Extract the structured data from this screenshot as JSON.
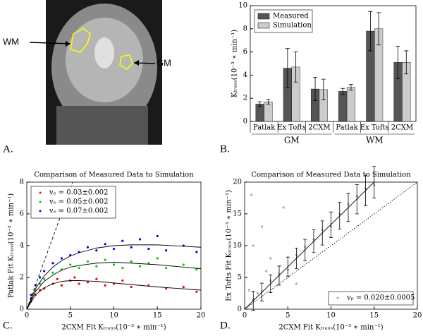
{
  "image": {
    "panel_label": "A.",
    "labels": [
      "WM",
      "GM"
    ]
  },
  "chart_data": [
    {
      "type": "bar",
      "panel_label": "B.",
      "ylabel": "Kₜᵣₐₙₛ(10⁻³ ∗ min⁻¹)",
      "categories": [
        "Patlak",
        "Ex Tofts",
        "2CXM",
        "Patlak",
        "Ex Tofts",
        "2CXM"
      ],
      "group_labels": [
        "GM",
        "WM"
      ],
      "series": [
        {
          "name": "Measured",
          "color": "#555555",
          "values": [
            1.5,
            4.6,
            2.8,
            2.6,
            7.8,
            5.1
          ],
          "errors": [
            0.2,
            1.7,
            1.0,
            0.25,
            1.7,
            1.4
          ]
        },
        {
          "name": "Simulation",
          "color": "#cccccc",
          "values": [
            1.7,
            4.7,
            2.75,
            2.95,
            8.0,
            5.1
          ],
          "errors": [
            0.2,
            1.3,
            0.9,
            0.25,
            1.4,
            1.0
          ]
        }
      ],
      "ylim": [
        0,
        10
      ],
      "yticks": [
        0,
        2,
        4,
        6,
        8,
        10
      ],
      "legend": "upper left"
    },
    {
      "type": "scatter",
      "panel_label": "C.",
      "title": "Comparison of Measured Data to Simulation",
      "xlabel": "2CXM Fit Kₜᵣₐₙₛ(10⁻³ ∗ min⁻¹)",
      "ylabel": "Patlak Fit Kₜᵣₐₙₛ(10⁻³ ∗ min⁻¹)",
      "series": [
        {
          "name": "vₑ = 0.03±0.002",
          "color": "#ff0000",
          "x": [
            0.5,
            1,
            1.5,
            2,
            3,
            3.5,
            4,
            5,
            5.5,
            6,
            7,
            8,
            9,
            10,
            11,
            12,
            14,
            16,
            18,
            19.5
          ],
          "values": [
            0.5,
            0.9,
            1.2,
            1.3,
            1.6,
            1.9,
            1.5,
            1.8,
            2.0,
            1.6,
            1.7,
            1.9,
            1.5,
            1.6,
            1.8,
            1.4,
            1.5,
            1.3,
            1.4,
            1.1
          ]
        },
        {
          "name": "vₑ = 0.05±0.002",
          "color": "#00cc00",
          "x": [
            0.5,
            1,
            1.5,
            2,
            3,
            4,
            5,
            6,
            7,
            8,
            9,
            10,
            11,
            12,
            13,
            14,
            15,
            16,
            18,
            19.5
          ],
          "values": [
            0.7,
            1.2,
            1.6,
            1.9,
            2.3,
            2.5,
            2.8,
            2.6,
            3.0,
            2.7,
            3.1,
            2.8,
            2.6,
            3.0,
            2.7,
            2.9,
            3.2,
            2.6,
            2.8,
            2.5
          ]
        },
        {
          "name": "vₑ = 0.07±0.002",
          "color": "#0000ff",
          "x": [
            0.5,
            1,
            1.5,
            2,
            3,
            4,
            5,
            6,
            7,
            8,
            9,
            10,
            11,
            12,
            13,
            14,
            15,
            16,
            18,
            19.5
          ],
          "values": [
            0.9,
            1.5,
            2.0,
            2.4,
            2.9,
            3.2,
            3.4,
            3.6,
            3.9,
            3.7,
            4.1,
            3.8,
            4.3,
            3.9,
            4.4,
            3.8,
            4.6,
            3.7,
            4.0,
            3.6
          ]
        }
      ],
      "lines": [
        {
          "color": "#000000",
          "style": "solid",
          "x": [
            0,
            1,
            2,
            3,
            4,
            5,
            6,
            8,
            10,
            12,
            15,
            20
          ],
          "y": [
            0,
            0.9,
            1.35,
            1.6,
            1.75,
            1.8,
            1.8,
            1.75,
            1.65,
            1.55,
            1.4,
            1.2
          ]
        },
        {
          "color": "#000000",
          "style": "solid",
          "x": [
            0,
            1,
            2,
            3,
            4,
            5,
            6,
            8,
            10,
            12,
            15,
            20
          ],
          "y": [
            0,
            1.1,
            1.75,
            2.15,
            2.45,
            2.65,
            2.75,
            2.9,
            2.95,
            2.9,
            2.8,
            2.55
          ]
        },
        {
          "color": "#000000",
          "style": "solid",
          "x": [
            0,
            1,
            2,
            3,
            4,
            5,
            6,
            8,
            10,
            12,
            15,
            20
          ],
          "y": [
            0,
            1.3,
            2.1,
            2.65,
            3.05,
            3.35,
            3.55,
            3.85,
            4.0,
            4.05,
            4.05,
            3.9
          ]
        },
        {
          "color": "#000000",
          "style": "dashed",
          "x": [
            0,
            5.3
          ],
          "y": [
            0,
            8
          ]
        }
      ],
      "xlim": [
        0,
        20
      ],
      "xticks": [
        0,
        5,
        10,
        15,
        20
      ],
      "ylim": [
        0,
        8
      ],
      "yticks": [
        0,
        2,
        4,
        6,
        8
      ],
      "legend": "upper left"
    },
    {
      "type": "scatter",
      "panel_label": "D.",
      "title": "Comparison of Measured Data to Simulation",
      "xlabel": "2CXM Fit Kₜᵣₐₙₛ(10⁻³ ∗ min⁻¹)",
      "ylabel": "Ex Tofts Fit Kₜᵣₐₙₛ(10⁻³ ∗ min⁻¹)",
      "series": [
        {
          "name": "vₚ = 0.020±0.0005",
          "color": "#aaaaaa",
          "x": [
            0.5,
            1,
            1,
            1.5,
            2,
            2,
            3,
            3,
            4,
            4.5,
            5,
            6,
            6,
            7,
            8,
            9,
            10,
            11,
            12,
            13,
            14,
            15,
            0.8,
            2.5
          ],
          "values": [
            3,
            1.5,
            10,
            2.5,
            2.8,
            13,
            4.5,
            8,
            5.5,
            16,
            6.2,
            8.5,
            4,
            9.8,
            11,
            12.5,
            13,
            15,
            16.5,
            17.8,
            19,
            19.5,
            18,
            6
          ]
        }
      ],
      "errorbars": {
        "color": "#000000",
        "x": [
          1,
          2,
          3,
          4,
          5,
          6,
          7,
          8,
          9,
          10,
          11,
          12,
          13,
          14,
          15
        ],
        "values": [
          1.3,
          2.7,
          4,
          5.3,
          6.7,
          8,
          9.3,
          10.7,
          12,
          13.3,
          14.7,
          16,
          17.3,
          18.7,
          20
        ],
        "errors": [
          1.5,
          1.4,
          1.4,
          1.5,
          1.5,
          1.6,
          1.7,
          1.8,
          1.9,
          2.0,
          2.1,
          2.2,
          2.3,
          2.4,
          2.5
        ]
      },
      "lines": [
        {
          "color": "#000000",
          "style": "solid",
          "x": [
            0,
            15
          ],
          "y": [
            0,
            20
          ]
        },
        {
          "color": "#000000",
          "style": "dotted",
          "x": [
            0,
            20
          ],
          "y": [
            0,
            20
          ]
        }
      ],
      "xlim": [
        0,
        20
      ],
      "xticks": [
        0,
        5,
        10,
        15,
        20
      ],
      "ylim": [
        0,
        20
      ],
      "yticks": [
        0,
        5,
        10,
        15,
        20
      ],
      "legend": "lower right"
    }
  ]
}
